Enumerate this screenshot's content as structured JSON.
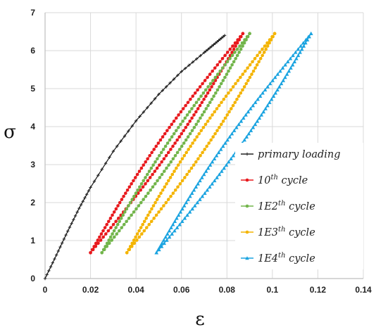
{
  "chart_data": {
    "type": "line",
    "xlabel": "ε",
    "ylabel": "σ",
    "xlim": [
      0,
      0.14
    ],
    "ylim": [
      0,
      7
    ],
    "xticks": [
      "0",
      "0.02",
      "0.04",
      "0.06",
      "0.08",
      "0.1",
      "0.12",
      "0.14"
    ],
    "yticks": [
      "0",
      "1",
      "2",
      "3",
      "4",
      "5",
      "6",
      "7"
    ],
    "grid": true,
    "legend_position": "lower-right",
    "series": [
      {
        "name": "primary loading",
        "legend_text": {
          "base": "primary loading",
          "sup": "",
          "tail": ""
        },
        "color": "#222222",
        "marker": "plus",
        "kind": "curve",
        "x": [
          0,
          0.005,
          0.01,
          0.015,
          0.02,
          0.03,
          0.04,
          0.05,
          0.06,
          0.07,
          0.075,
          0.079
        ],
        "y": [
          0,
          0.62,
          1.25,
          1.85,
          2.4,
          3.35,
          4.15,
          4.85,
          5.45,
          5.95,
          6.2,
          6.4
        ]
      },
      {
        "name": "10th cycle",
        "legend_text": {
          "base": "10",
          "sup": "th",
          "tail": " cycle"
        },
        "color": "#e8191d",
        "marker": "circle",
        "kind": "loop",
        "x_min": 0.02,
        "x_max": 0.087,
        "y_min": 0.68,
        "y_max": 6.45
      },
      {
        "name": "1E2th cycle",
        "legend_text": {
          "base": "1E2",
          "sup": "th",
          "tail": " cycle"
        },
        "color": "#72b54b",
        "marker": "circle",
        "kind": "loop",
        "x_min": 0.025,
        "x_max": 0.09,
        "y_min": 0.68,
        "y_max": 6.45
      },
      {
        "name": "1E3th cycle",
        "legend_text": {
          "base": "1E3",
          "sup": "th",
          "tail": " cycle"
        },
        "color": "#f4b400",
        "marker": "circle",
        "kind": "loop",
        "x_min": 0.036,
        "x_max": 0.101,
        "y_min": 0.68,
        "y_max": 6.45
      },
      {
        "name": "1E4th cycle",
        "legend_text": {
          "base": "1E4",
          "sup": "th",
          "tail": " cycle"
        },
        "color": "#1aa3e0",
        "marker": "triangle",
        "kind": "loop",
        "x_min": 0.049,
        "x_max": 0.117,
        "y_min": 0.68,
        "y_max": 6.45
      }
    ]
  }
}
